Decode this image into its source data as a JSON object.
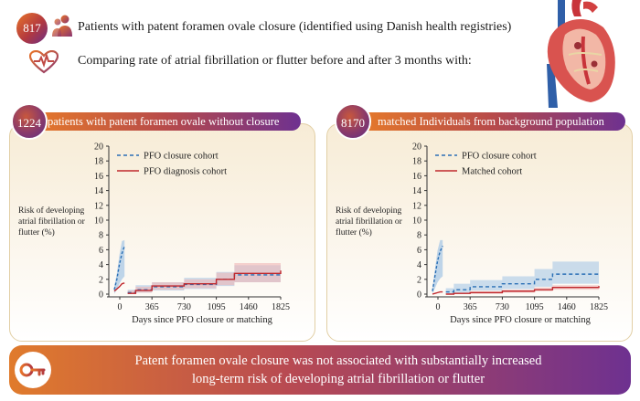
{
  "header": {
    "badge_count": "817",
    "line1": "Patients with patent foramen ovale closure (identified using Danish health registries)",
    "line2": "Comparing rate of atrial fibrillation or flutter before and after 3 months with:",
    "icons": [
      "people-icon",
      "heart-rate-icon",
      "heart-illustration-icon"
    ]
  },
  "panels": [
    {
      "badge": "1224",
      "title": "patients with patent foramen ovale without closure",
      "ylabel": "Risk of developing atrial fibrillation or flutter (%)",
      "xlabel": "Days since PFO closure or matching",
      "legend": [
        "PFO closure cohort",
        "PFO diagnosis cohort"
      ]
    },
    {
      "badge": "8170",
      "title": "matched Individuals from background population",
      "ylabel": "Risk of developing atrial fibrillation or flutter (%)",
      "xlabel": "Days since PFO closure or matching",
      "legend": [
        "PFO closure cohort",
        "Matched cohort"
      ]
    }
  ],
  "chart_data": [
    {
      "type": "line",
      "title": "",
      "xlabel": "Days since PFO closure or matching",
      "ylabel": "Risk of developing atrial fibrillation or flutter (%)",
      "x_ticks": [
        0,
        365,
        730,
        1095,
        1460,
        1825
      ],
      "y_ticks": [
        0,
        2,
        4,
        6,
        8,
        10,
        12,
        14,
        16,
        18,
        20
      ],
      "xlim": [
        0,
        1825
      ],
      "ylim": [
        0,
        20
      ],
      "legend_position": "top-left",
      "grid": false,
      "colors": {
        "closure": "#2a6fb5",
        "comparison": "#c0282d",
        "closure_band": "#a9c8e6",
        "comparison_band": "#f0b5b5"
      },
      "early_period": {
        "x": [
          -60,
          90
        ],
        "closure": {
          "name": "PFO closure cohort",
          "values": [
            [
              -60,
              0.6
            ],
            [
              -30,
              2.0
            ],
            [
              0,
              4.0
            ],
            [
              30,
              5.5
            ],
            [
              60,
              6.5
            ]
          ],
          "band_upper_peak": 6.5
        },
        "comparison": {
          "name": "PFO diagnosis cohort",
          "values": [
            [
              -60,
              0.4
            ],
            [
              -30,
              0.7
            ],
            [
              0,
              1.0
            ],
            [
              30,
              1.4
            ],
            [
              60,
              1.5
            ]
          ]
        }
      },
      "series": [
        {
          "name": "PFO closure cohort",
          "style": "dashed",
          "x": [
            90,
            180,
            365,
            730,
            1095,
            1300,
            1825
          ],
          "values": [
            0.2,
            0.6,
            1.0,
            1.3,
            2.0,
            2.6,
            2.8
          ]
        },
        {
          "name": "PFO diagnosis cohort",
          "style": "solid",
          "x": [
            90,
            180,
            365,
            730,
            1095,
            1300,
            1825
          ],
          "values": [
            0.1,
            0.5,
            1.1,
            1.4,
            2.0,
            2.8,
            3.2
          ]
        }
      ],
      "bands": [
        {
          "series": "PFO closure cohort",
          "upper": [
            0.6,
            1.2,
            1.6,
            2.2,
            3.0,
            3.9,
            4.2
          ],
          "lower": [
            0.0,
            0.2,
            0.5,
            0.7,
            1.1,
            1.6,
            1.7
          ]
        },
        {
          "series": "PFO diagnosis cohort",
          "upper": [
            0.5,
            1.0,
            1.6,
            2.0,
            2.9,
            4.2,
            4.6
          ],
          "lower": [
            0.0,
            0.2,
            0.6,
            0.8,
            1.2,
            1.6,
            1.9
          ]
        }
      ]
    },
    {
      "type": "line",
      "title": "",
      "xlabel": "Days since PFO closure or matching",
      "ylabel": "Risk of developing atrial fibrillation or flutter (%)",
      "x_ticks": [
        0,
        365,
        730,
        1095,
        1460,
        1825
      ],
      "y_ticks": [
        0,
        2,
        4,
        6,
        8,
        10,
        12,
        14,
        16,
        18,
        20
      ],
      "xlim": [
        0,
        1825
      ],
      "ylim": [
        0,
        20
      ],
      "legend_position": "top-left",
      "grid": false,
      "colors": {
        "closure": "#2a6fb5",
        "comparison": "#c0282d",
        "closure_band": "#a9c8e6",
        "comparison_band": "#f0b5b5"
      },
      "early_period": {
        "x": [
          -60,
          90
        ],
        "closure": {
          "name": "PFO closure cohort",
          "values": [
            [
              -60,
              0.4
            ],
            [
              -30,
              2.5
            ],
            [
              0,
              4.5
            ],
            [
              30,
              5.8
            ],
            [
              60,
              6.5
            ]
          ],
          "band_upper_peak": 6.5
        },
        "comparison": {
          "name": "Matched cohort",
          "values": [
            [
              -60,
              0.0
            ],
            [
              -30,
              0.1
            ],
            [
              0,
              0.2
            ],
            [
              30,
              0.3
            ],
            [
              60,
              0.3
            ]
          ]
        }
      },
      "series": [
        {
          "name": "PFO closure cohort",
          "style": "dashed",
          "x": [
            90,
            180,
            365,
            730,
            1095,
            1300,
            1825
          ],
          "values": [
            0.3,
            0.6,
            1.0,
            1.4,
            2.0,
            2.7,
            2.8
          ]
        },
        {
          "name": "Matched cohort",
          "style": "solid",
          "x": [
            90,
            180,
            365,
            730,
            1095,
            1300,
            1825
          ],
          "values": [
            0.0,
            0.1,
            0.2,
            0.4,
            0.6,
            0.9,
            1.1
          ]
        }
      ],
      "bands": [
        {
          "series": "PFO closure cohort",
          "upper": [
            0.8,
            1.4,
            1.9,
            2.4,
            3.4,
            4.4,
            4.5
          ],
          "lower": [
            0.0,
            0.2,
            0.5,
            0.7,
            1.0,
            1.4,
            1.5
          ]
        },
        {
          "series": "Matched cohort",
          "upper": [
            0.1,
            0.2,
            0.4,
            0.6,
            0.9,
            1.2,
            1.5
          ],
          "lower": [
            0.0,
            0.0,
            0.1,
            0.2,
            0.4,
            0.6,
            0.8
          ]
        }
      ]
    }
  ],
  "footer": {
    "line1": "Patent foramen ovale closure was not associated with substantially increased",
    "line2": "long-term risk of developing atrial fibrillation or flutter",
    "icon": "key-icon"
  }
}
